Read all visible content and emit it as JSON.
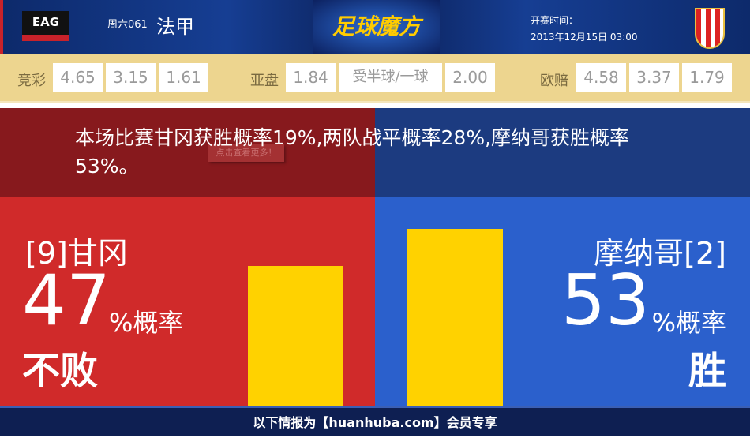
{
  "header": {
    "home_logo_text": "EAG",
    "match_day": "周六061",
    "league": "法甲",
    "brand": "足球魔方",
    "kickoff_label": "开赛时间：",
    "kickoff_time": "2013年12月15日 03:00"
  },
  "odds": {
    "jingcai": {
      "label": "竞彩",
      "values": [
        "4.65",
        "3.15",
        "1.61"
      ]
    },
    "asian": {
      "label": "亚盘",
      "home": "1.84",
      "handicap": "受半球/一球",
      "away": "2.00"
    },
    "euro": {
      "label": "欧赔",
      "values": [
        "4.58",
        "3.37",
        "1.79"
      ]
    }
  },
  "summary": {
    "text": "本场比赛甘冈获胜概率19%,两队战平概率28%,摩纳哥获胜概率53%。",
    "more_button": "点击查看更多！"
  },
  "home": {
    "team": "[9]甘冈",
    "percent": "47",
    "percent_label": "%概率",
    "result": "不败",
    "bar_value": 47
  },
  "away": {
    "team": "摩纳哥[2]",
    "percent": "53",
    "percent_label": "%概率",
    "result": "胜",
    "bar_value": 53
  },
  "colors": {
    "home": "#d02a2a",
    "away": "#2b60cc",
    "bar": "#ffd200"
  },
  "footer": {
    "text": "以下情报为【huanhuba.com】会员专享"
  }
}
